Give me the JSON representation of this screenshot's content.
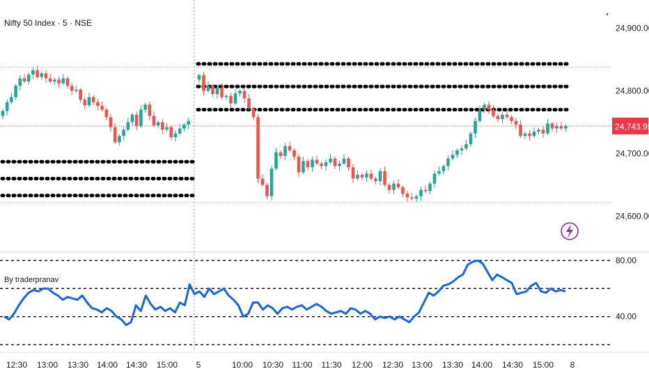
{
  "header": {
    "title": "Nifty 50 Index · 5 · NSE"
  },
  "indicator": {
    "label": "By traderpranav"
  },
  "colors": {
    "up": "#26a69a",
    "down": "#ef5350",
    "line": "#1565e8",
    "price_tag": "#f23645",
    "bolt": "#9c27b0"
  },
  "chart_data": [
    {
      "type": "candlestick",
      "y_ticks": [
        "24,900.00",
        "24,800.00",
        "24,700.00",
        "24,600.00"
      ],
      "ylim": [
        24545,
        24945
      ],
      "current_price": "24,743.95",
      "current_value": 24743.95,
      "dotted_levels_left": [
        24687,
        24660,
        24633
      ],
      "dotted_levels_right": [
        24843,
        24807,
        24770
      ],
      "grey_levels": [
        24838,
        24622
      ],
      "x_ticks": [
        "12:30",
        "13:00",
        "13:30",
        "14:00",
        "14:30",
        "15:00",
        "5",
        "10:00",
        "10:30",
        "11:00",
        "11:30",
        "12:00",
        "12:30",
        "13:00",
        "13:30",
        "14:00",
        "14:30",
        "15:00",
        "8"
      ],
      "session_1_closes": [
        24768,
        24782,
        24790,
        24808,
        24820,
        24815,
        24826,
        24833,
        24822,
        24828,
        24820,
        24815,
        24818,
        24812,
        24820,
        24808,
        24800,
        24802,
        24786,
        24777,
        24790,
        24782,
        24776,
        24770,
        24758,
        24742,
        24718,
        24728,
        24738,
        24750,
        24762,
        24744,
        24770,
        24778,
        24760,
        24745,
        24750,
        24738,
        24742,
        24726,
        24732,
        24740,
        24746,
        24752
      ],
      "session_2_closes": [
        24825,
        24800,
        24808,
        24795,
        24805,
        24790,
        24792,
        24780,
        24796,
        24800,
        24788,
        24772,
        24758,
        24660,
        24650,
        24632,
        24676,
        24702,
        24696,
        24712,
        24705,
        24695,
        24670,
        24688,
        24678,
        24690,
        24684,
        24680,
        24686,
        24692,
        24680,
        24684,
        24692,
        24678,
        24660,
        24666,
        24662,
        24668,
        24660,
        24656,
        24672,
        24650,
        24642,
        24652,
        24646,
        24636,
        24630,
        24628,
        24632,
        24642,
        24640,
        24652,
        24668,
        24672,
        24680,
        24692,
        24698,
        24705,
        24708,
        24715,
        24732,
        24752,
        24770,
        24778,
        24770,
        24760,
        24755,
        24762,
        24758,
        24752,
        24746,
        24728,
        24732,
        24728,
        24735,
        24738,
        24732,
        24748,
        24740,
        24744,
        24740,
        24743.95
      ],
      "rsi_ticks": [
        "80.00",
        "40.00"
      ],
      "rsi_levels": [
        80,
        60,
        40,
        20
      ],
      "rsi_ylim": [
        15,
        85
      ],
      "rsi_values": [
        40,
        38,
        42,
        48,
        53,
        57,
        59,
        58,
        60,
        60,
        57,
        55,
        52,
        54,
        53,
        52,
        55,
        50,
        46,
        45,
        43,
        46,
        44,
        40,
        38,
        34,
        36,
        48,
        44,
        55,
        49,
        45,
        47,
        44,
        46,
        43,
        50,
        48,
        63,
        56,
        58,
        54,
        60,
        56,
        58,
        60,
        55,
        52,
        48,
        40,
        42,
        50,
        50,
        45,
        48,
        46,
        42,
        46,
        47,
        45,
        47,
        48,
        45,
        47,
        49,
        47,
        44,
        42,
        43,
        44,
        42,
        46,
        45,
        42,
        44,
        42,
        38,
        40,
        39,
        40,
        38,
        40,
        38,
        36,
        40,
        43,
        50,
        57,
        55,
        58,
        62,
        63,
        65,
        68,
        70,
        77,
        79,
        80,
        78,
        72,
        66,
        70,
        68,
        66,
        64,
        56,
        57,
        58,
        62,
        64,
        58,
        57,
        60,
        58,
        59,
        58
      ]
    }
  ]
}
